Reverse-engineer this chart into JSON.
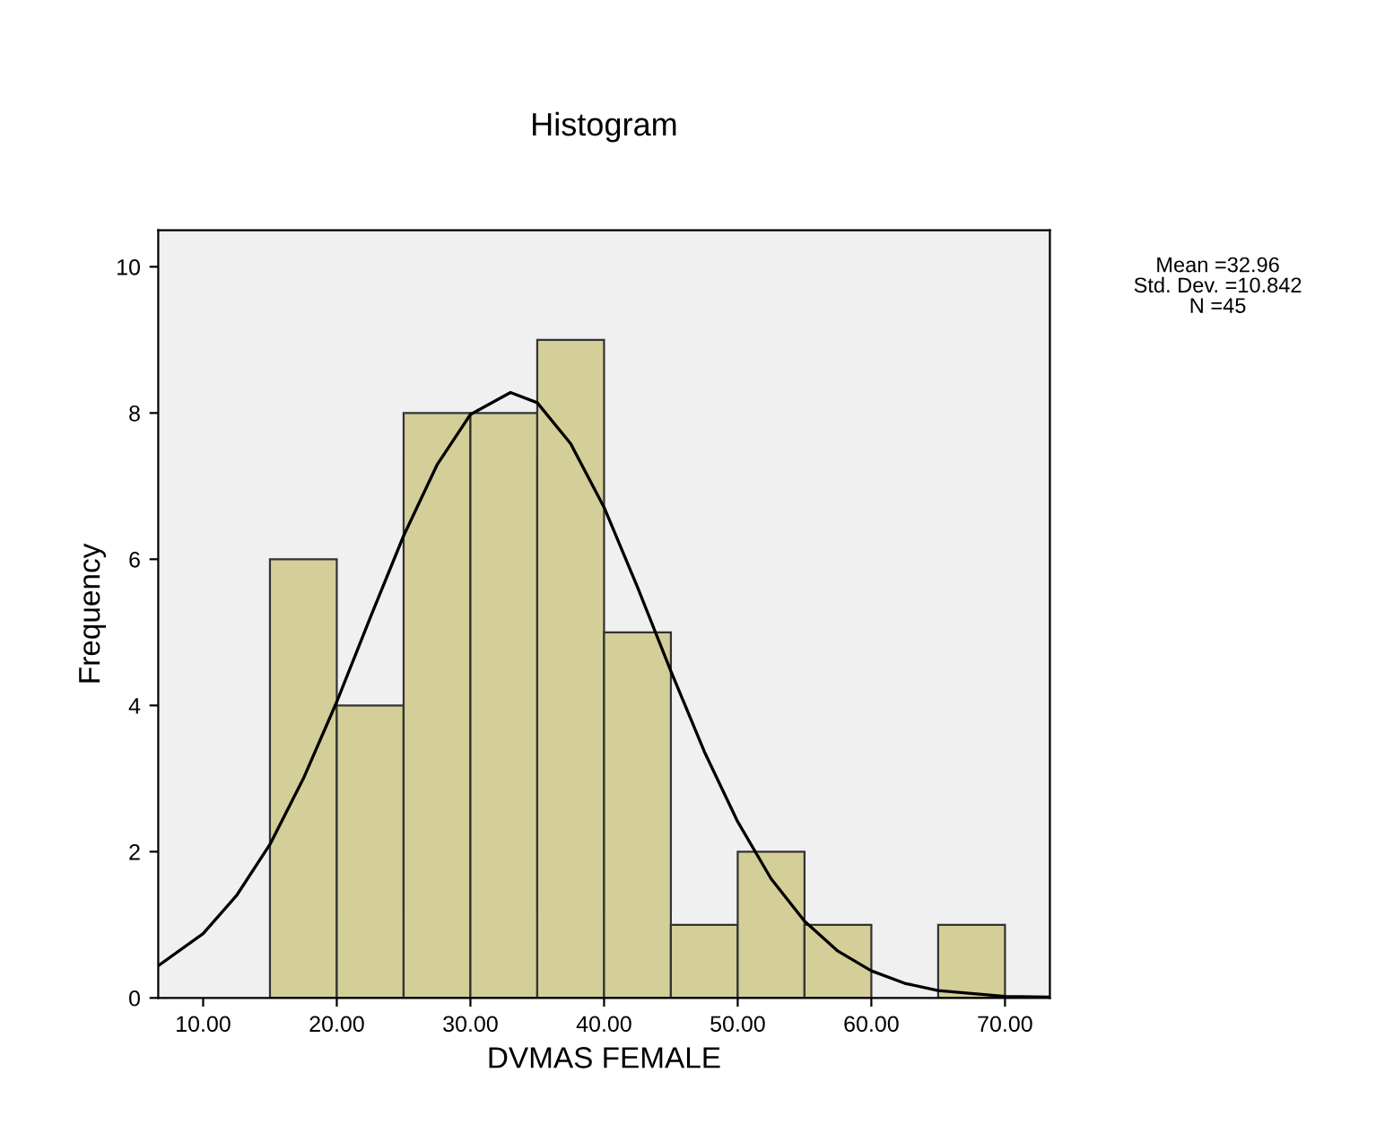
{
  "chart_data": {
    "type": "histogram",
    "title": "Histogram",
    "xlabel": "DVMAS FEMALE",
    "ylabel": "Frequency",
    "bins": [
      15,
      20,
      25,
      30,
      35,
      40,
      45,
      50,
      55,
      60,
      65,
      70
    ],
    "values": [
      6,
      4,
      8,
      8,
      9,
      5,
      1,
      2,
      1,
      0,
      1
    ],
    "color": "#d4cf98",
    "series": [
      {
        "type": "line",
        "color": "#000000",
        "x": [
          6.64,
          10,
          12.5,
          15,
          17.5,
          20,
          22.5,
          25,
          27.5,
          30,
          33,
          35,
          37.5,
          40,
          42.5,
          45,
          47.5,
          50,
          52.5,
          55,
          57.5,
          60,
          62.5,
          65,
          70,
          73.36
        ],
        "values": [
          0.44,
          0.88,
          1.4,
          2.1,
          3.0,
          4.05,
          5.2,
          6.32,
          7.29,
          7.98,
          8.28,
          8.14,
          7.58,
          6.71,
          5.62,
          4.47,
          3.37,
          2.41,
          1.63,
          1.05,
          0.64,
          0.37,
          0.2,
          0.1,
          0.02,
          0.01
        ]
      }
    ],
    "xlim": [
      6.64,
      73.36
    ],
    "ylim": [
      0,
      10.5
    ],
    "xticks": [
      {
        "value": 10,
        "label": "10.00"
      },
      {
        "value": 20,
        "label": "20.00"
      },
      {
        "value": 30,
        "label": "30.00"
      },
      {
        "value": 40,
        "label": "40.00"
      },
      {
        "value": 50,
        "label": "50.00"
      },
      {
        "value": 60,
        "label": "60.00"
      },
      {
        "value": 70,
        "label": "70.00"
      }
    ],
    "yticks": [
      0,
      2,
      4,
      6,
      8,
      10
    ],
    "grid": false,
    "legend": false,
    "annotations": [
      "Mean =32.96",
      "Std. Dev. =10.842",
      "N =45"
    ]
  }
}
